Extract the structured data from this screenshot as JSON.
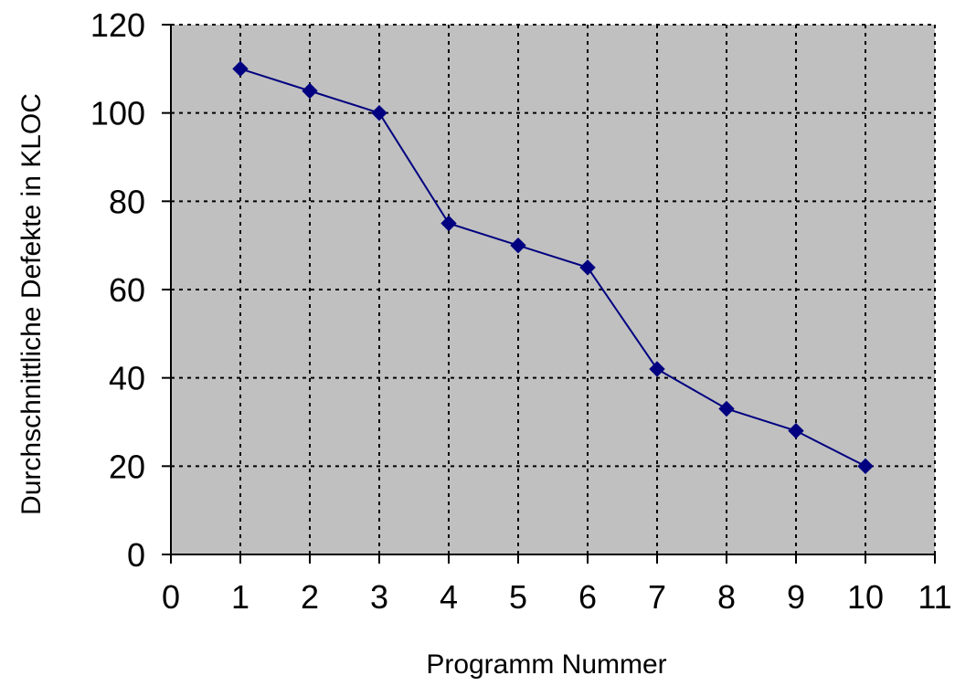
{
  "chart_data": {
    "type": "line",
    "title": "",
    "xlabel": "Programm Nummer",
    "ylabel": "Durchschnittliche Defekte in KLOC",
    "xlim": [
      0,
      11
    ],
    "ylim": [
      0,
      120
    ],
    "x_ticks": [
      0,
      1,
      2,
      3,
      4,
      5,
      6,
      7,
      8,
      9,
      10,
      11
    ],
    "y_ticks": [
      0,
      20,
      40,
      60,
      80,
      100,
      120
    ],
    "x_tick_labels": [
      "0",
      "1",
      "2",
      "3",
      "4",
      "5",
      "6",
      "7",
      "8",
      "9",
      "10",
      "11"
    ],
    "y_tick_labels": [
      "0",
      "20",
      "40",
      "60",
      "80",
      "100",
      "120"
    ],
    "grid": true,
    "grid_style": "dotted",
    "legend": "none",
    "series": [
      {
        "x": [
          1,
          2,
          3,
          4,
          5,
          6,
          7,
          8,
          9,
          10
        ],
        "y": [
          110,
          105,
          100,
          75,
          70,
          65,
          42,
          33,
          28,
          20
        ],
        "marker": "diamond",
        "color": "#000080"
      }
    ],
    "colors": {
      "plot_background": "#c0c0c0",
      "grid": "#000000",
      "axis": "#000000",
      "series": "#000080"
    }
  }
}
